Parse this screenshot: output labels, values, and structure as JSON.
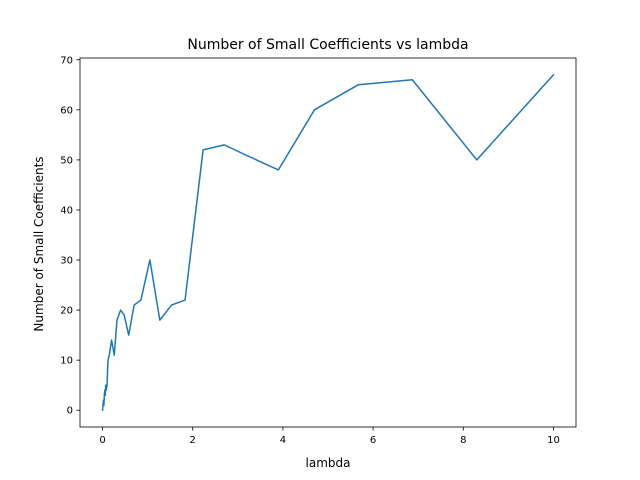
{
  "chart_data": {
    "type": "line",
    "title": "Number of Small Coefficients vs lambda",
    "xlabel": "lambda",
    "ylabel": "Number of Small Coefficients",
    "xlim": [
      -0.5,
      10.5
    ],
    "ylim": [
      -3.35,
      70.35
    ],
    "xticks": [
      0,
      2,
      4,
      6,
      8,
      10
    ],
    "yticks": [
      0,
      10,
      20,
      30,
      40,
      50,
      60,
      70
    ],
    "grid": false,
    "color": "#1f77b4",
    "series": [
      {
        "x": [
          0.0,
          0.01,
          0.02,
          0.03,
          0.04,
          0.05,
          0.06,
          0.07,
          0.08,
          0.1,
          0.12,
          0.15,
          0.2,
          0.26,
          0.32,
          0.4,
          0.48,
          0.58,
          0.7,
          0.85,
          1.05,
          1.27,
          1.53,
          1.83,
          2.23,
          2.7,
          3.17,
          3.9,
          4.7,
          5.67,
          6.87,
          8.3,
          10.0
        ],
        "y": [
          0,
          1,
          2,
          1,
          3,
          4,
          3,
          5,
          4,
          5,
          10,
          11,
          14,
          11,
          18,
          20,
          19,
          15,
          21,
          22,
          30,
          18,
          21,
          22,
          52,
          53,
          51,
          48,
          60,
          65,
          66,
          50,
          67
        ]
      }
    ]
  }
}
